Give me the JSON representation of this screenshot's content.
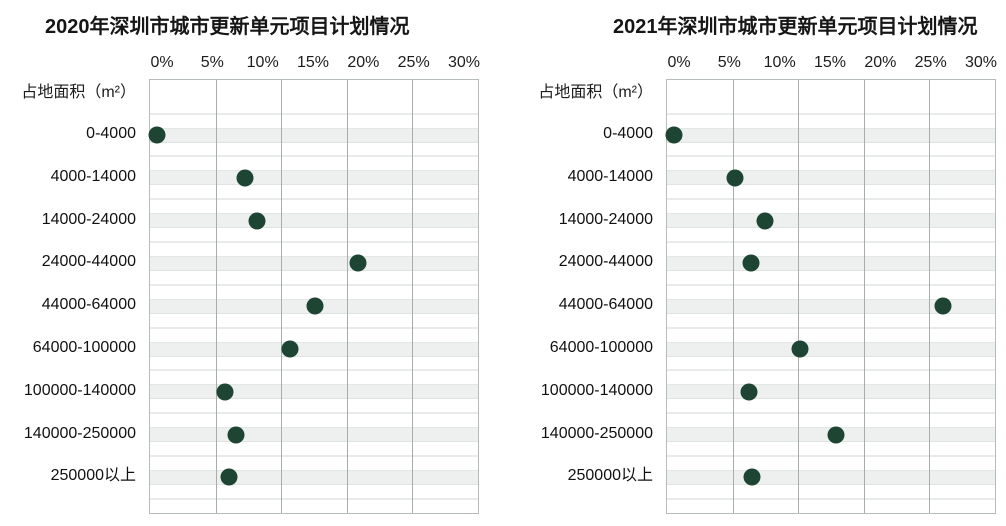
{
  "chart_data": [
    {
      "type": "scatter",
      "title": "2020年深圳市城市更新单元项目计划情况",
      "ylabel": "占地面积（m²）",
      "categories": [
        "0-4000",
        "4000-14000",
        "14000-24000",
        "24000-44000",
        "44000-64000",
        "64000-100000",
        "100000-140000",
        "140000-250000",
        "250000以上"
      ],
      "values": [
        0.6,
        8.7,
        9.8,
        19.0,
        15.1,
        12.8,
        6.9,
        7.9,
        7.2
      ],
      "x_ticks": [
        "0%",
        "5%",
        "10%",
        "15%",
        "20%",
        "25%",
        "30%"
      ],
      "xlim": [
        0,
        30
      ],
      "unit": "%",
      "grid": true,
      "legend": "none",
      "dot_color": "#1e4434",
      "band_color": "#edf0ee"
    },
    {
      "type": "scatter",
      "title": "2021年深圳市城市更新单元项目计划情况",
      "ylabel": "占地面积（m²）",
      "categories": [
        "0-4000",
        "4000-14000",
        "14000-24000",
        "24000-44000",
        "44000-64000",
        "64000-100000",
        "100000-140000",
        "140000-250000",
        "250000以上"
      ],
      "values": [
        0.6,
        6.2,
        9.0,
        7.7,
        25.2,
        12.2,
        7.5,
        15.5,
        7.8
      ],
      "x_ticks": [
        "0%",
        "5%",
        "10%",
        "15%",
        "20%",
        "25%",
        "30%"
      ],
      "xlim": [
        0,
        30
      ],
      "unit": "%",
      "grid": true,
      "legend": "none",
      "dot_color": "#1e4434",
      "band_color": "#edf0ee"
    }
  ],
  "colors": {
    "dot": "#1e4434",
    "band": "#edf0ee",
    "vline": "#a7adab",
    "hline": "#e8ebe9",
    "plot_border": "#b6bcba",
    "text": "#161616"
  }
}
